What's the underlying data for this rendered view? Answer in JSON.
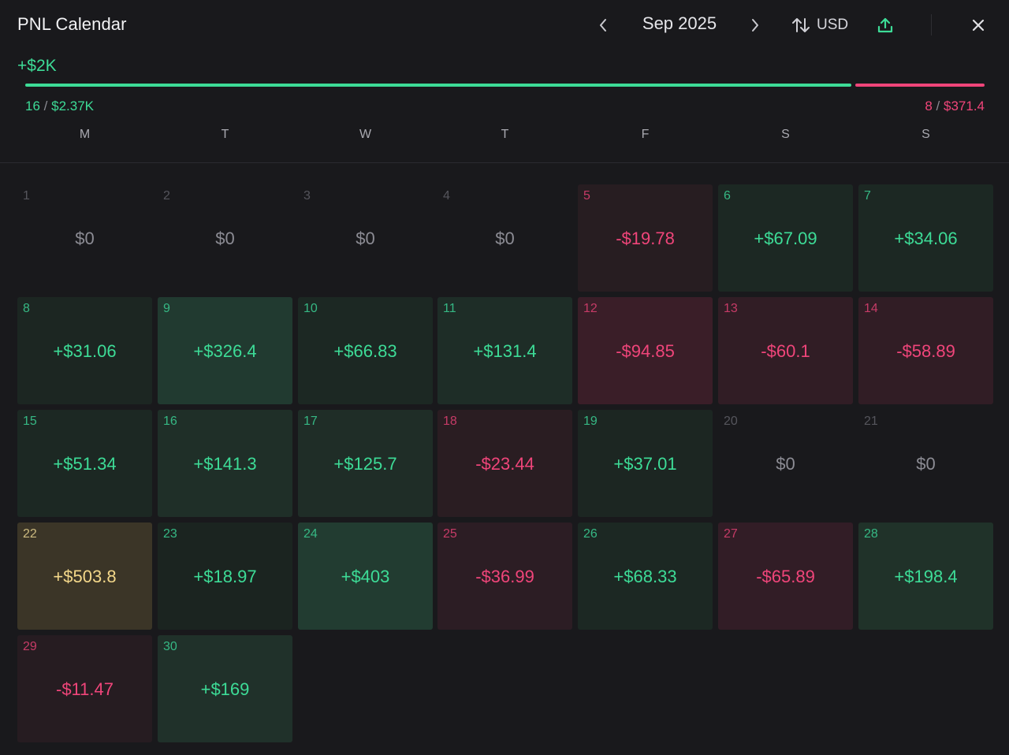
{
  "header": {
    "title": "PNL Calendar",
    "month": "Sep 2025",
    "currency": "USD",
    "icons": {
      "prev": "chevron-left-icon",
      "next": "chevron-right-icon",
      "sort": "sort-arrows-icon",
      "export": "upload-icon",
      "close": "close-icon"
    }
  },
  "summary": {
    "total": "+$2K",
    "wins_count": "16",
    "wins_amount": "$2.37K",
    "losses_count": "8",
    "losses_amount": "$371.4",
    "separator": "/",
    "win_ratio": 0.865
  },
  "weekdays": [
    "M",
    "T",
    "W",
    "T",
    "F",
    "S",
    "S"
  ],
  "colors": {
    "positive": "#3ddc97",
    "negative": "#f0457a",
    "best": "#f4d88a",
    "background": "#19191c"
  },
  "days": [
    {
      "day": "1",
      "value": "$0",
      "kind": "zero",
      "bg": "transparent"
    },
    {
      "day": "2",
      "value": "$0",
      "kind": "zero",
      "bg": "transparent"
    },
    {
      "day": "3",
      "value": "$0",
      "kind": "zero",
      "bg": "transparent"
    },
    {
      "day": "4",
      "value": "$0",
      "kind": "zero",
      "bg": "transparent"
    },
    {
      "day": "5",
      "value": "-$19.78",
      "kind": "neg",
      "bg": "#271d21"
    },
    {
      "day": "6",
      "value": "+$67.09",
      "kind": "pos",
      "bg": "#1c2823"
    },
    {
      "day": "7",
      "value": "+$34.06",
      "kind": "pos",
      "bg": "#1c2823"
    },
    {
      "day": "8",
      "value": "+$31.06",
      "kind": "pos",
      "bg": "#1c2622"
    },
    {
      "day": "9",
      "value": "+$326.4",
      "kind": "pos",
      "bg": "#213a30"
    },
    {
      "day": "10",
      "value": "+$66.83",
      "kind": "pos",
      "bg": "#1c2823"
    },
    {
      "day": "11",
      "value": "+$131.4",
      "kind": "pos",
      "bg": "#1e2d27"
    },
    {
      "day": "12",
      "value": "-$94.85",
      "kind": "neg",
      "bg": "#3a1e28"
    },
    {
      "day": "13",
      "value": "-$60.1",
      "kind": "neg",
      "bg": "#311d25"
    },
    {
      "day": "14",
      "value": "-$58.89",
      "kind": "neg",
      "bg": "#311d25"
    },
    {
      "day": "15",
      "value": "+$51.34",
      "kind": "pos",
      "bg": "#1c2823"
    },
    {
      "day": "16",
      "value": "+$141.3",
      "kind": "pos",
      "bg": "#1f2f28"
    },
    {
      "day": "17",
      "value": "+$125.7",
      "kind": "pos",
      "bg": "#1f2d27"
    },
    {
      "day": "18",
      "value": "-$23.44",
      "kind": "neg",
      "bg": "#2a1d22"
    },
    {
      "day": "19",
      "value": "+$37.01",
      "kind": "pos",
      "bg": "#1c2622"
    },
    {
      "day": "20",
      "value": "$0",
      "kind": "zero",
      "bg": "transparent"
    },
    {
      "day": "21",
      "value": "$0",
      "kind": "zero",
      "bg": "transparent"
    },
    {
      "day": "22",
      "value": "+$503.8",
      "kind": "best",
      "bg": "#3b3527"
    },
    {
      "day": "23",
      "value": "+$18.97",
      "kind": "pos",
      "bg": "#1b2420"
    },
    {
      "day": "24",
      "value": "+$403",
      "kind": "pos",
      "bg": "#223c31"
    },
    {
      "day": "25",
      "value": "-$36.99",
      "kind": "neg",
      "bg": "#2c1d24"
    },
    {
      "day": "26",
      "value": "+$68.33",
      "kind": "pos",
      "bg": "#1c2823"
    },
    {
      "day": "27",
      "value": "-$65.89",
      "kind": "neg",
      "bg": "#321d26"
    },
    {
      "day": "28",
      "value": "+$198.4",
      "kind": "pos",
      "bg": "#203229"
    },
    {
      "day": "29",
      "value": "-$11.47",
      "kind": "neg",
      "bg": "#261c21"
    },
    {
      "day": "30",
      "value": "+$169",
      "kind": "pos",
      "bg": "#20312a"
    }
  ]
}
